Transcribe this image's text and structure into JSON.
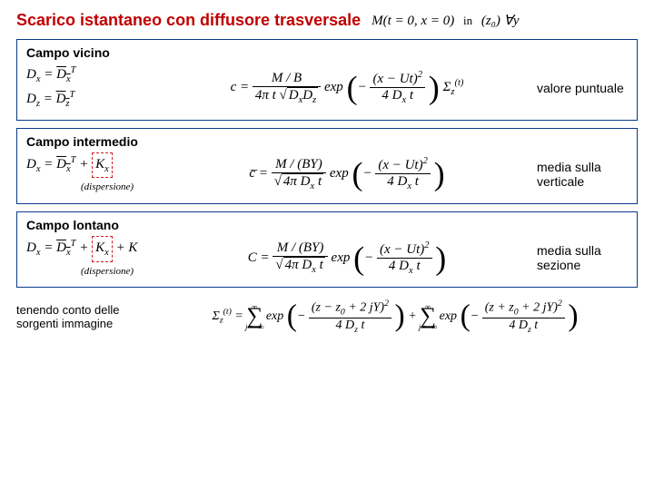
{
  "title": "Scarico istantaneo con diffusore trasversale",
  "title_cond": "M(t = 0, x = 0)",
  "title_in": "in",
  "title_z": "(z₀)  ∀y",
  "box1": {
    "heading": "Campo vicino",
    "dx": "Dₓ = ",
    "dx_bar": "Dₓᵀ",
    "dz": "D_z = ",
    "dz_bar": "D_zᵀ",
    "right": "valore puntuale",
    "eq_lhs": "c =",
    "eq_num": "M / B",
    "eq_den_a": "4π t",
    "eq_den_b": "Dₓ D_z",
    "eq_exp": "exp",
    "eq_exp_num": "(x − Ut)²",
    "eq_exp_den": "4 Dₓ t",
    "eq_sigma": "Σ_z^(t)"
  },
  "box2": {
    "heading": "Campo intermedio",
    "dx": "Dₓ = ",
    "dx_bar": "Dₓᵀ",
    "plus": " + ",
    "kx": "Kₓ",
    "disp": "(dispersione)",
    "right": "media sulla verticale",
    "eq_lhs": "c̄ =",
    "eq_num": "M / (BY)",
    "eq_den_a": "4π Dₓ t",
    "eq_exp": "exp",
    "eq_exp_num": "(x − Ut)²",
    "eq_exp_den": "4 Dₓ t"
  },
  "box3": {
    "heading": "Campo lontano",
    "dx": "Dₓ = ",
    "dx_bar": "Dₓᵀ",
    "plus": " + ",
    "kx": "Kₓ",
    "plus2": " + K",
    "disp": "(dispersione)",
    "right": "media sulla sezione",
    "eq_lhs": "C =",
    "eq_num": "M / (BY)",
    "eq_den_a": "4π Dₓ t",
    "eq_exp": "exp",
    "eq_exp_num": "(x − Ut)²",
    "eq_exp_den": "4 Dₓ t"
  },
  "footer": {
    "label": "tenendo conto delle sorgenti immagine",
    "lhs": "Σ_z^(t) =",
    "t1_num": "(z − z₀ + 2 jY)²",
    "t1_den": "4 D_z t",
    "t2_num": "(z + z₀ + 2 jY)²",
    "t2_den": "4 D_z t",
    "exp": "exp"
  }
}
